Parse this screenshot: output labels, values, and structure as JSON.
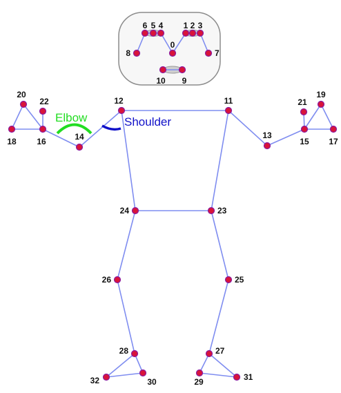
{
  "colors": {
    "bone": "#7f8df0",
    "keypoint_fill": "#d8143a",
    "keypoint_stroke": "#8a1aa0",
    "face_box_stroke": "#8c8c8c",
    "face_box_fill": "#f7f7f7",
    "elbow": "#22dd22",
    "shoulder": "#1010c8",
    "eye_fill": "#cfcfcf"
  },
  "annotations": {
    "elbow": "Elbow",
    "shoulder": "Shoulder"
  },
  "keypoints": [
    "0",
    "1",
    "2",
    "3",
    "4",
    "5",
    "6",
    "7",
    "8",
    "9",
    "10",
    "11",
    "12",
    "13",
    "14",
    "15",
    "16",
    "17",
    "18",
    "19",
    "20",
    "21",
    "22",
    "23",
    "24",
    "25",
    "26",
    "27",
    "28",
    "29",
    "30",
    "31",
    "32"
  ]
}
